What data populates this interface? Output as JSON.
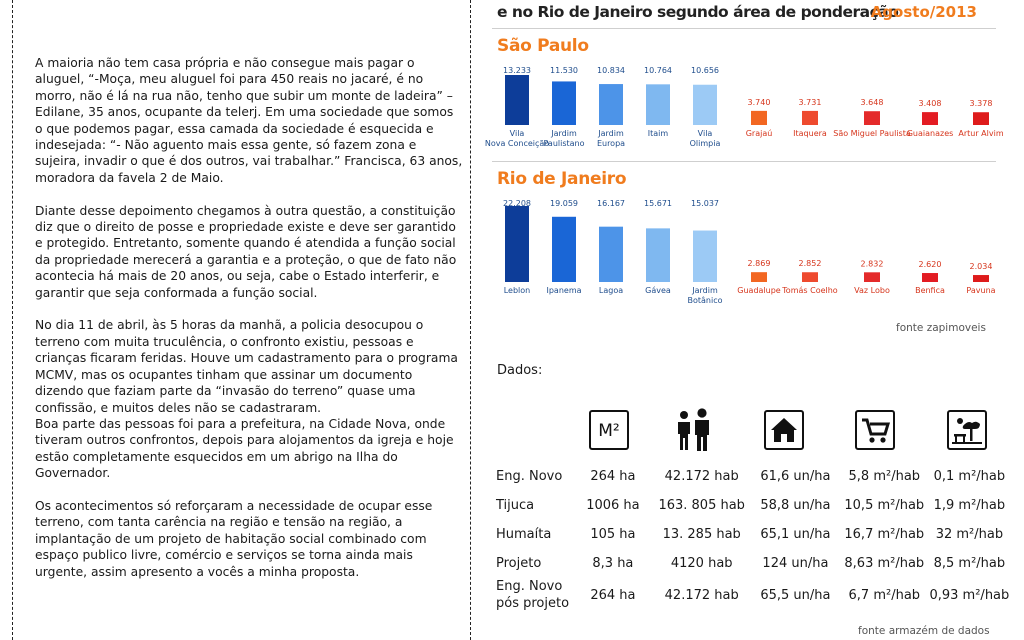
{
  "text": {
    "p1": "A maioria não tem casa própria e não consegue mais pagar o aluguel, “-Moça, meu aluguel foi para 450 reais no jacaré, é no morro, não é lá na rua não, tenho que subir um monte de ladeira” – Edilane, 35 anos, ocupante da telerj. Em uma sociedade que somos o que podemos pagar, essa camada da sociedade é esquecida e indesejada: “- Não aguento mais essa gente, só fazem zona e sujeira, invadir o que é dos outros, vai trabalhar.” Francisca, 63 anos, moradora da favela 2 de Maio.",
    "p2": "Diante desse depoimento chegamos à outra questão, a constituição diz que o direito de posse e propriedade existe e deve ser garantido e protegido. Entretanto, somente quando é atendida a função social da propriedade merecerá a garantia e a proteção, o que de fato não acontecia há mais de 20 anos, ou seja, cabe o Estado interferir, e garantir que seja conformada a função social.",
    "p3": "No dia 11 de abril, às 5 horas da manhã, a policia desocupou o terreno com muita truculência, o confronto existiu, pessoas e crianças ficaram feridas.  Houve um cadastramento para o programa MCMV, mas os ocupantes tinham que assinar um documento dizendo que faziam parte da “invasão do terreno” quase uma confissão, e muitos deles não se cadastraram.",
    "p4": "Boa parte das pessoas foi para a prefeitura, na Cidade Nova, onde tiveram outros confrontos, depois para alojamentos da igreja e hoje estão completamente esquecidos em um abrigo na Ilha do Governador.",
    "p5": "Os acontecimentos só reforçaram a necessidade de ocupar esse terreno, com tanta carência na região e tensão na região, a implantação de um projeto de habitação social combinado com espaço publico livre, comércio e serviços se torna ainda mais urgente, assim apresento a vocês a minha proposta."
  },
  "chart_header": {
    "title": "e no Rio de Janeiro segundo área de ponderação",
    "date": "Agosto/2013"
  },
  "chart_data": [
    {
      "type": "bar",
      "title": "São Paulo",
      "categories": [
        "Vila Nova Conceição",
        "Jardim Paulistano",
        "Jardim Europa",
        "Itaim",
        "Vila Olimpia",
        "Grajaú",
        "Itaquera",
        "São Miguel Paulista",
        "Guaianazes",
        "Artur Alvim"
      ],
      "values": [
        13233,
        11530,
        10834,
        10764,
        10656,
        3740,
        3731,
        3648,
        3408,
        3378
      ],
      "value_labels": [
        "13.233",
        "11.530",
        "10.834",
        "10.764",
        "10.656",
        "3.740",
        "3.731",
        "3.648",
        "3.408",
        "3.378"
      ],
      "source": "fonte zapimoveis"
    },
    {
      "type": "bar",
      "title": "Rio de Janeiro",
      "categories": [
        "Leblon",
        "Ipanema",
        "Lagoa",
        "Gávea",
        "Jardim Botânico",
        "Guadalupe",
        "Tomás Coelho",
        "Vaz Lobo",
        "Benfica",
        "Pavuna"
      ],
      "values": [
        22208,
        19059,
        16167,
        15671,
        15037,
        2869,
        2852,
        2832,
        2620,
        2034
      ],
      "value_labels": [
        "22.208",
        "19.059",
        "16.167",
        "15.671",
        "15.037",
        "2.869",
        "2.852",
        "2.832",
        "2.620",
        "2.034"
      ],
      "source": "fonte zapimoveis"
    }
  ],
  "colors": {
    "blues": [
      "#0d3d99",
      "#1a66d6",
      "#4d94e8",
      "#7fb8f0",
      "#9ccaf5"
    ],
    "reds": [
      "#f26722",
      "#ee4a2e",
      "#e42a2a",
      "#e31c23",
      "#de1b1b"
    ],
    "accent": "#f07c1e"
  },
  "data_section": {
    "label": "Dados:",
    "icons": [
      "m2-icon",
      "people-icon",
      "house-icon",
      "cart-icon",
      "park-icon"
    ],
    "m2_text": "M²",
    "rows": [
      {
        "label": "Eng. Novo",
        "values": [
          "264 ha",
          "42.172 hab",
          "61,6 un/ha",
          "5,8 m²/hab",
          "0,1 m²/hab"
        ]
      },
      {
        "label": "Tijuca",
        "values": [
          "1006 ha",
          "163. 805 hab",
          "58,8 un/ha",
          "10,5 m²/hab",
          "1,9 m²/hab"
        ]
      },
      {
        "label": "Humaíta",
        "values": [
          "105 ha",
          "13. 285 hab",
          "65,1 un/ha",
          "16,7 m²/hab",
          "32 m²/hab"
        ]
      },
      {
        "label": "Projeto",
        "values": [
          "8,3 ha",
          "4120 hab",
          "124 un/ha",
          "8,63 m²/hab",
          "8,5 m²/hab"
        ]
      },
      {
        "label": "Eng. Novo pós projeto",
        "values": [
          "264 ha",
          "42.172 hab",
          "65,5 un/ha",
          "6,7 m²/hab",
          "0,93 m²/hab"
        ]
      }
    ],
    "source": "fonte armazém de dados"
  }
}
